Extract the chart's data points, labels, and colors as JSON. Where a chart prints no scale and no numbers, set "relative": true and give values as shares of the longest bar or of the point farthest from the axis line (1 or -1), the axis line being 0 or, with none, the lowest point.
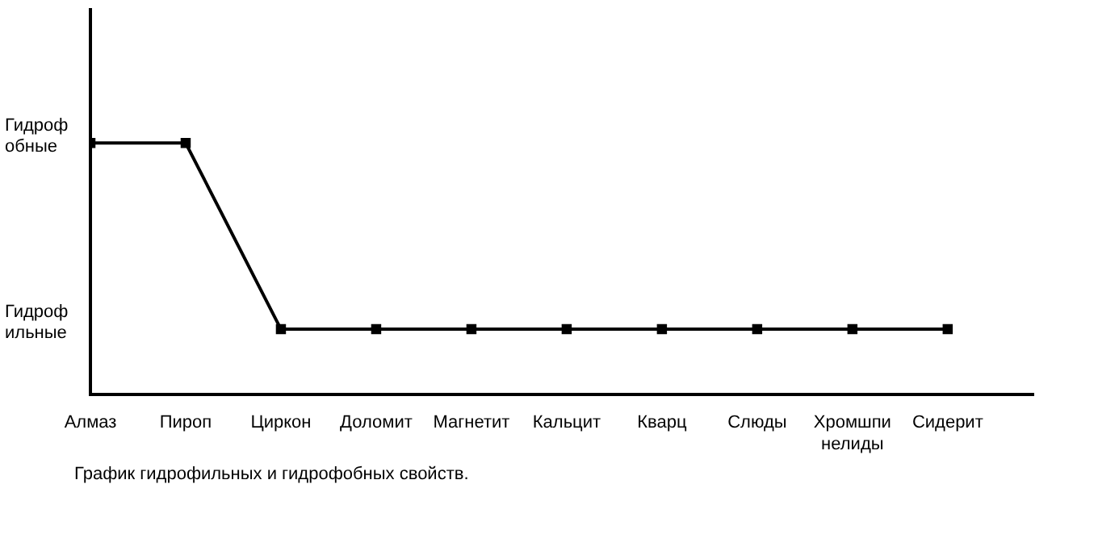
{
  "chart_data": {
    "type": "line",
    "categories": [
      "Алмаз",
      "Пироп",
      "Циркон",
      "Доломит",
      "Магнетит",
      "Кальцит",
      "Кварц",
      "Слюды",
      "Хромшпи\nнелиды",
      "Сидерит"
    ],
    "values": [
      1,
      1,
      0.26,
      0.26,
      0.26,
      0.26,
      0.26,
      0.26,
      0.26,
      0.26
    ],
    "color": "#000000",
    "relative": true,
    "marker": "square",
    "line_style": "solid",
    "annotations": [
      "Гидроф\nобные",
      "Гидроф\nильные",
      "График гидрофильных и гидрофобных свойств."
    ]
  }
}
